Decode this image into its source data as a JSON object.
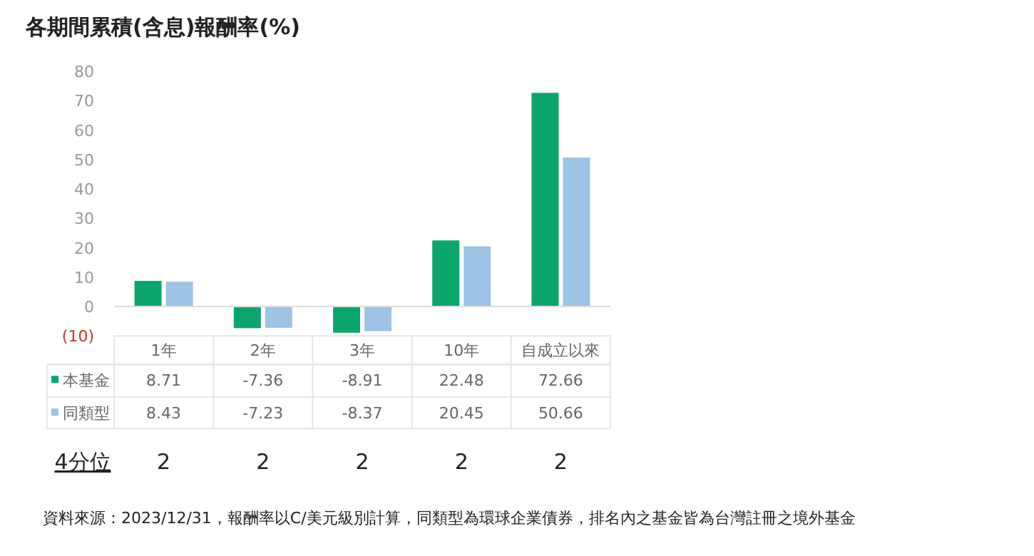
{
  "chart_data": {
    "type": "bar",
    "title": "各期間累積(含息)報酬率(%)",
    "categories": [
      "1年",
      "2年",
      "3年",
      "10年",
      "自成立以來"
    ],
    "series": [
      {
        "name": "本基金",
        "color": "#0aa66e",
        "values": [
          8.71,
          -7.36,
          -8.91,
          22.48,
          72.66
        ]
      },
      {
        "name": "同類型",
        "color": "#9dc3e6",
        "values": [
          8.43,
          -7.23,
          -8.37,
          20.45,
          50.66
        ]
      }
    ],
    "ylim": [
      -10,
      80
    ],
    "yticks": [
      {
        "value": -10,
        "label": "(10)"
      },
      0,
      10,
      20,
      30,
      40,
      50,
      60,
      70,
      80
    ],
    "grid": false,
    "legend": "bottom left",
    "data_labels": true,
    "annotations": [
      "4分位",
      "2",
      "2",
      "2",
      "2",
      "2",
      "資料來源：2023/12/31，報酬率以C/美元級別計算，同類型為環球企業債券，排名內之基金皆為台灣註冊之境外基金"
    ]
  }
}
